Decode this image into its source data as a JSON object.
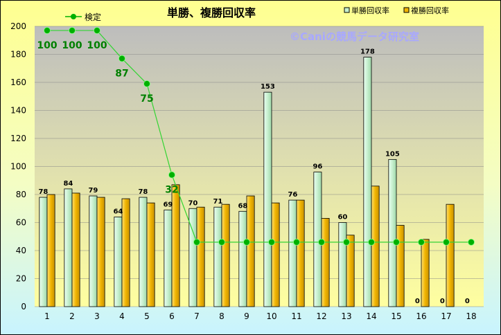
{
  "chart_data": {
    "type": "bar",
    "title": "単勝、複勝回収率",
    "watermark": "©Caniの競馬データ研究室",
    "categories": [
      "1",
      "2",
      "3",
      "4",
      "5",
      "6",
      "7",
      "8",
      "9",
      "10",
      "11",
      "12",
      "13",
      "14",
      "15",
      "16",
      "17",
      "18"
    ],
    "ylim": [
      0,
      200
    ],
    "yticks": [
      0,
      20,
      40,
      60,
      80,
      100,
      120,
      140,
      160,
      180,
      200
    ],
    "legend_position": "top",
    "series": [
      {
        "name": "単勝回収率",
        "kind": "bar",
        "color": "#c6efce",
        "values": [
          78,
          84,
          79,
          64,
          78,
          69,
          70,
          71,
          68,
          153,
          76,
          96,
          60,
          178,
          105,
          0,
          0,
          0
        ],
        "labels": [
          "78",
          "84",
          "79",
          "64",
          "78",
          "69",
          "70",
          "71",
          "68",
          "153",
          "76",
          "96",
          "60",
          "178",
          "105",
          "0",
          "0",
          "0"
        ]
      },
      {
        "name": "複勝回収率",
        "kind": "bar",
        "color": "#f0b400",
        "values": [
          80,
          81,
          78,
          77,
          74,
          87,
          71,
          73,
          79,
          74,
          76,
          63,
          51,
          86,
          58,
          48,
          73,
          0
        ]
      },
      {
        "name": "検定",
        "kind": "line",
        "color": "#00b000",
        "values": [
          197,
          197,
          197,
          177,
          159,
          94,
          46,
          46,
          46,
          46,
          46,
          46,
          46,
          46,
          46,
          46,
          46,
          46
        ],
        "labels": [
          "100",
          "100",
          "100",
          "87",
          "75",
          "32",
          "",
          "",
          "",
          "",
          "",
          "",
          "",
          "",
          "",
          "",
          "",
          ""
        ]
      }
    ]
  }
}
